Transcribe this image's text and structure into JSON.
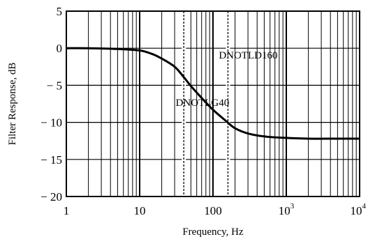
{
  "chart_data": {
    "type": "line",
    "xlabel": "Frequency, Hz",
    "ylabel": "Filter Response, dB",
    "xscale": "log",
    "xlim": [
      1,
      10000
    ],
    "ylim": [
      -20,
      5
    ],
    "grid": true,
    "x_ticks": [
      {
        "value": 1,
        "base": "1",
        "exp": ""
      },
      {
        "value": 10,
        "base": "10",
        "exp": ""
      },
      {
        "value": 100,
        "base": "100",
        "exp": ""
      },
      {
        "value": 1000,
        "base": "10",
        "exp": "3"
      },
      {
        "value": 10000,
        "base": "10",
        "exp": "4"
      }
    ],
    "y_ticks": [
      {
        "value": 5,
        "label": "5"
      },
      {
        "value": 0,
        "label": "0"
      },
      {
        "value": -5,
        "label": "− 5"
      },
      {
        "value": -10,
        "label": "− 10"
      },
      {
        "value": -15,
        "label": "− 15"
      },
      {
        "value": -20,
        "label": "− 20"
      }
    ],
    "series": [
      {
        "x": [
          1,
          2,
          5,
          10,
          15,
          20,
          30,
          40,
          50,
          70,
          100,
          150,
          200,
          300,
          500,
          1000,
          2000,
          5000,
          10000
        ],
        "y": [
          0,
          0,
          -0.1,
          -0.3,
          -0.8,
          -1.4,
          -2.5,
          -3.9,
          -5.1,
          -6.7,
          -8.3,
          -9.8,
          -10.8,
          -11.5,
          -11.9,
          -12.1,
          -12.2,
          -12.2,
          -12.2
        ]
      }
    ],
    "reference_lines": [
      {
        "x": 40,
        "label": "DNOTLG40",
        "label_x": 31,
        "label_y": -7.8
      },
      {
        "x": 160,
        "label": "DNOTLD160",
        "label_x": 120,
        "label_y": -1.4
      }
    ]
  }
}
